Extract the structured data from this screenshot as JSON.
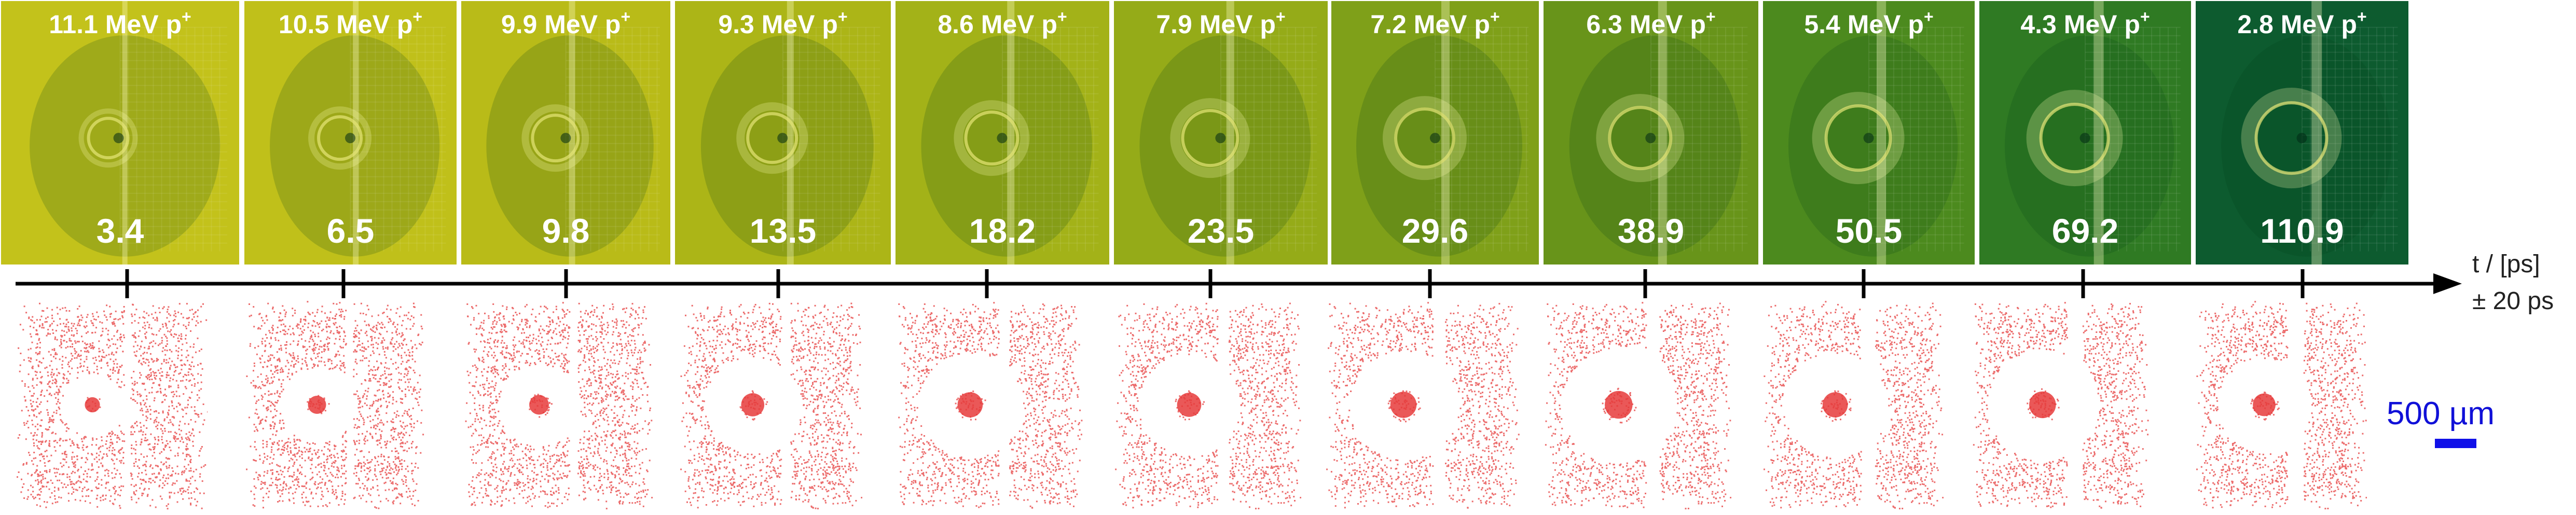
{
  "frames": [
    {
      "energy_value": "11.1 MeV p",
      "energy_sup": "+",
      "time": "3.4",
      "color": "#c3c21b"
    },
    {
      "energy_value": "10.5 MeV p",
      "energy_sup": "+",
      "time": "6.5",
      "color": "#c0c01a"
    },
    {
      "energy_value": "9.9 MeV p",
      "energy_sup": "+",
      "time": "9.8",
      "color": "#b9bb18"
    },
    {
      "energy_value": "9.3 MeV p",
      "energy_sup": "+",
      "time": "13.5",
      "color": "#acb517"
    },
    {
      "energy_value": "8.6 MeV p",
      "energy_sup": "+",
      "time": "18.2",
      "color": "#a3b218"
    },
    {
      "energy_value": "7.9 MeV p",
      "energy_sup": "+",
      "time": "23.5",
      "color": "#95ab18"
    },
    {
      "energy_value": "7.2 MeV p",
      "energy_sup": "+",
      "time": "29.6",
      "color": "#7fa019"
    },
    {
      "energy_value": "6.3 MeV p",
      "energy_sup": "+",
      "time": "38.9",
      "color": "#68941a"
    },
    {
      "energy_value": "5.4 MeV p",
      "energy_sup": "+",
      "time": "50.5",
      "color": "#4c8a1e"
    },
    {
      "energy_value": "4.3 MeV p",
      "energy_sup": "+",
      "time": "69.2",
      "color": "#2f7a23"
    },
    {
      "energy_value": "2.8 MeV p",
      "energy_sup": "+",
      "time": "110.9",
      "color": "#0d5b2f"
    }
  ],
  "axis": {
    "label_line1": "t / [ps]",
    "label_line2": "± 20 ps"
  },
  "scale_bar": {
    "label": "500 µm",
    "color": "#1010e8"
  },
  "simulation": {
    "dot_color": "#e63b3b"
  }
}
